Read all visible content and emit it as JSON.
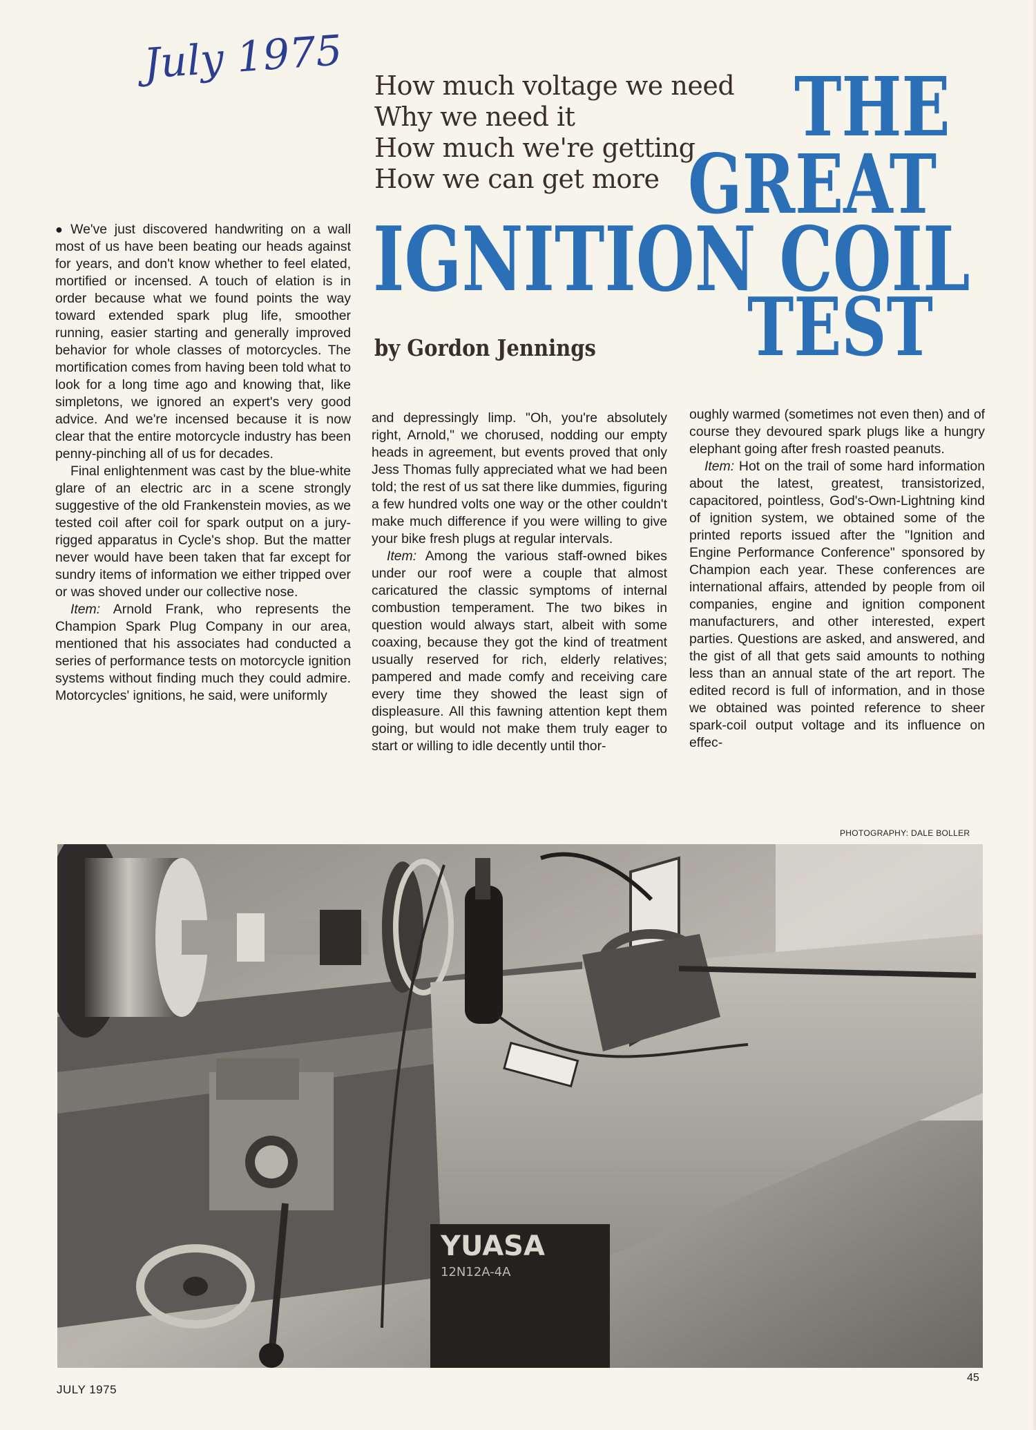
{
  "annotation": {
    "handwritten_date": "July 1975"
  },
  "deck": [
    "How much voltage we need",
    "Why we need it",
    "How much we're getting",
    "How we can get more"
  ],
  "title": {
    "line1": "THE",
    "line2": "GREAT",
    "line3": "IGNITION COIL",
    "line4": "TEST",
    "color": "#2b6fb6"
  },
  "byline": "by Gordon Jennings",
  "article": {
    "col1": {
      "p1": "We've just discovered handwriting on a wall most of us have been beating our heads against for years, and don't know whether to feel elated, mortified or incensed. A touch of elation is in order because what we found points the way toward extended spark plug life, smoother running, easier starting and generally improved behavior for whole classes of motorcycles. The mortification comes from having been told what to look for a long time ago and knowing that, like simpletons, we ignored an expert's very good advice. And we're incensed because it is now clear that the entire motorcycle industry has been penny-pinching all of us for decades.",
      "p2": "Final enlightenment was cast by the blue-white glare of an electric arc in a scene strongly suggestive of the old Frankenstein movies, as we tested coil after coil for spark output on a jury-rigged apparatus in Cycle's shop. But the matter never would have been taken that far except for sundry items of information we either tripped over or was shoved under our collective nose.",
      "p3_lead": "Item:",
      "p3": " Arnold Frank, who represents the Champion Spark Plug Company in our area, mentioned that his associates had conducted a series of performance tests on motorcycle ignition systems without finding much they could admire. Motorcycles' ignitions, he said, were uniformly"
    },
    "col2": {
      "p1": "and depressingly limp. \"Oh, you're absolutely right, Arnold,\" we chorused, nodding our empty heads in agreement, but events proved that only Jess Thomas fully appreciated what we had been told; the rest of us sat there like dummies, figuring a few hundred volts one way or the other couldn't make much difference if you were willing to give your bike fresh plugs at regular intervals.",
      "p2_lead": "Item:",
      "p2": " Among the various staff-owned bikes under our roof were a couple that almost caricatured the classic symptoms of internal combustion temperament. The two bikes in question would always start, albeit with some coaxing, because they got the kind of treatment usually reserved for rich, elderly relatives; pampered and made comfy and receiving care every time they showed the least sign of displeasure. All this fawning attention kept them going, but would not make them truly eager to start or willing to idle decently until thor-"
    },
    "col3": {
      "p1": "oughly warmed (sometimes not even then) and of course they devoured spark plugs like a hungry elephant going after fresh roasted peanuts.",
      "p2_lead": "Item:",
      "p2": " Hot on the trail of some hard information about the latest, greatest, transistorized, capacitored, pointless, God's-Own-Lightning kind of ignition system, we obtained some of the printed reports issued after the \"Ignition and Engine Performance Conference\" sponsored by Champion each year. These conferences are international affairs, attended by people from oil companies, engine and ignition component manufacturers, and other interested, expert parties. Questions are asked, and answered, and the gist of all that gets said amounts to nothing less than an annual state of the art report. The edited record is full of information, and in those we obtained was pointed reference to sheer spark-coil output voltage and its influence on effec-"
    }
  },
  "photo": {
    "credit": "PHOTOGRAPHY: DALE BOLLER",
    "battery_brand": "YUASA",
    "battery_model": "12N12A-4A"
  },
  "footer": {
    "date": "JULY 1975",
    "page_number": "45"
  }
}
